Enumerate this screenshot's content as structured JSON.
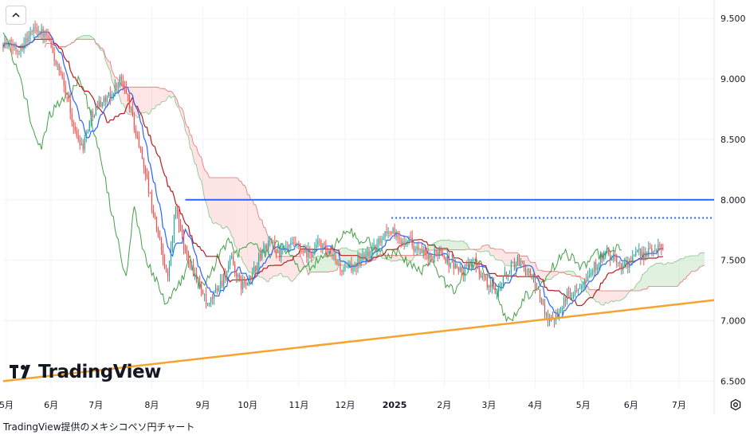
{
  "chart_data": {
    "type": "candlestick",
    "y_axis": {
      "ylim": [
        6.45,
        9.6
      ],
      "ticks": [
        "9.500",
        "9.000",
        "8.500",
        "8.000",
        "7.500",
        "7.000",
        "6.500"
      ],
      "tick_values": [
        9.5,
        9.0,
        8.5,
        8.0,
        7.5,
        7.0,
        6.5
      ],
      "position": "right"
    },
    "x_axis": {
      "labels": [
        "5月",
        "6月",
        "7月",
        "8月",
        "9月",
        "10月",
        "11月",
        "12月",
        "2025",
        "2月",
        "3月",
        "4月",
        "5月",
        "6月",
        "7月"
      ],
      "bold_labels": [
        "2025"
      ],
      "xlim": [
        0,
        445
      ],
      "label_days": [
        2,
        30,
        58,
        93,
        125,
        153,
        185,
        214,
        245,
        276,
        304,
        333,
        363,
        393,
        423
      ]
    },
    "grid": true,
    "close_anchors": [
      [
        0,
        9.3
      ],
      [
        10,
        9.25
      ],
      [
        20,
        9.43
      ],
      [
        28,
        9.33
      ],
      [
        35,
        9.05
      ],
      [
        40,
        8.85
      ],
      [
        45,
        8.55
      ],
      [
        50,
        8.45
      ],
      [
        55,
        8.7
      ],
      [
        60,
        8.8
      ],
      [
        67,
        8.85
      ],
      [
        73,
        9.0
      ],
      [
        78,
        8.85
      ],
      [
        83,
        8.55
      ],
      [
        88,
        8.3
      ],
      [
        93,
        7.95
      ],
      [
        98,
        7.65
      ],
      [
        103,
        7.35
      ],
      [
        108,
        7.95
      ],
      [
        113,
        7.6
      ],
      [
        118,
        7.45
      ],
      [
        123,
        7.3
      ],
      [
        128,
        7.1
      ],
      [
        133,
        7.25
      ],
      [
        138,
        7.35
      ],
      [
        143,
        7.5
      ],
      [
        148,
        7.3
      ],
      [
        153,
        7.3
      ],
      [
        158,
        7.45
      ],
      [
        163,
        7.6
      ],
      [
        168,
        7.65
      ],
      [
        173,
        7.55
      ],
      [
        178,
        7.6
      ],
      [
        183,
        7.62
      ],
      [
        188,
        7.55
      ],
      [
        193,
        7.55
      ],
      [
        198,
        7.65
      ],
      [
        203,
        7.55
      ],
      [
        208,
        7.5
      ],
      [
        213,
        7.4
      ],
      [
        218,
        7.45
      ],
      [
        223,
        7.5
      ],
      [
        228,
        7.55
      ],
      [
        233,
        7.6
      ],
      [
        238,
        7.72
      ],
      [
        243,
        7.75
      ],
      [
        248,
        7.65
      ],
      [
        253,
        7.7
      ],
      [
        258,
        7.6
      ],
      [
        263,
        7.55
      ],
      [
        268,
        7.5
      ],
      [
        273,
        7.6
      ],
      [
        278,
        7.5
      ],
      [
        283,
        7.45
      ],
      [
        288,
        7.4
      ],
      [
        293,
        7.5
      ],
      [
        298,
        7.42
      ],
      [
        303,
        7.3
      ],
      [
        308,
        7.25
      ],
      [
        313,
        7.35
      ],
      [
        318,
        7.45
      ],
      [
        323,
        7.5
      ],
      [
        328,
        7.4
      ],
      [
        333,
        7.3
      ],
      [
        338,
        7.1
      ],
      [
        343,
        7.0
      ],
      [
        348,
        7.1
      ],
      [
        353,
        7.2
      ],
      [
        358,
        7.25
      ],
      [
        363,
        7.35
      ],
      [
        368,
        7.4
      ],
      [
        373,
        7.5
      ],
      [
        378,
        7.55
      ],
      [
        383,
        7.5
      ],
      [
        388,
        7.45
      ],
      [
        393,
        7.5
      ],
      [
        398,
        7.55
      ],
      [
        403,
        7.55
      ],
      [
        408,
        7.6
      ],
      [
        413,
        7.62
      ]
    ],
    "lines": [
      {
        "kind": "horizontal",
        "value": 8.0,
        "from_day": 114,
        "to_day": 445,
        "color": "#2962ff",
        "style": "solid"
      },
      {
        "kind": "horizontal",
        "value": 7.85,
        "from_day": 243,
        "to_day": 445,
        "color": "#2962ff",
        "style": "dotted"
      },
      {
        "kind": "trend",
        "points": [
          [
            0,
            6.5
          ],
          [
            445,
            7.17
          ]
        ],
        "color": "#f7a32f",
        "style": "solid"
      }
    ],
    "indicator": "ichimoku",
    "colors": {
      "up": "#26a69a",
      "down": "#ef5350",
      "conversion": "#2962ff",
      "base": "#b71c1c",
      "lagging": "#43a047",
      "cloud_bull": "#a5d6a7",
      "cloud_bear": "#f8b4b4"
    }
  },
  "watermark": {
    "logo_text": "TradingView"
  },
  "caption": "TradingView提供のメキシコペソ円チャート",
  "ui": {
    "collapse_icon": "chevron-up-icon",
    "settings_icon": "gear-icon"
  }
}
